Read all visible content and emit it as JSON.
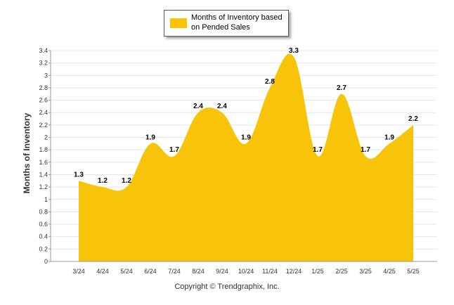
{
  "chart_data": {
    "type": "area",
    "categories": [
      "3/24",
      "4/24",
      "5/24",
      "6/24",
      "7/24",
      "8/24",
      "9/24",
      "10/24",
      "11/24",
      "12/24",
      "1/25",
      "2/25",
      "3/25",
      "4/25",
      "5/25"
    ],
    "series": [
      {
        "name": "Months of Inventory based on Pended Sales",
        "values": [
          1.3,
          1.2,
          1.2,
          1.9,
          1.7,
          2.4,
          2.4,
          1.9,
          2.8,
          3.3,
          1.7,
          2.7,
          1.7,
          1.9,
          2.2
        ],
        "labels": [
          "1.3",
          "1.2",
          "1.2",
          "1.9",
          "1.7",
          "2.4",
          "2.4",
          "1.9",
          "2.8",
          "3.3",
          "1.7",
          "2.7",
          "1.7",
          "1.9",
          "2.2"
        ],
        "color": "#F7C409"
      }
    ],
    "ylabel": "Months of Inventory",
    "ylim": [
      0,
      3.4
    ],
    "yticks": [
      "0",
      "0.2",
      "0.4",
      "0.6",
      "0.8",
      "1",
      "1.2",
      "1.4",
      "1.6",
      "1.8",
      "2",
      "2.2",
      "2.4",
      "2.6",
      "2.8",
      "3",
      "3.2",
      "3.4"
    ],
    "grid": true,
    "legend_position": "top"
  },
  "footer": {
    "copyright": "Copyright © Trendgraphix, Inc."
  }
}
